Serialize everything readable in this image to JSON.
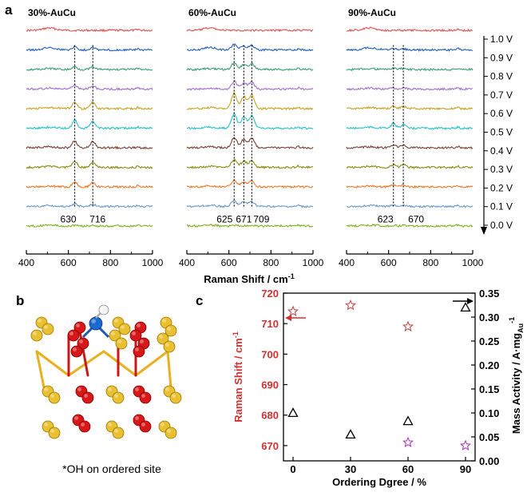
{
  "panel_letters": {
    "a": "a",
    "b": "b",
    "c": "c"
  },
  "caption_b": "*OH on ordered site",
  "chart_data": [
    {
      "type": "line",
      "panel": "a",
      "xlabel": "Raman Shift / cm",
      "xlabel_sup": "-1",
      "xlim": [
        400,
        1000
      ],
      "xticks": [
        "400",
        "600",
        "800",
        "1000"
      ],
      "voltage_labels": [
        "1.0 V",
        "0.9 V",
        "0.8 V",
        "0.7 V",
        "0.6 V",
        "0.5 V",
        "0.4 V",
        "0.3 V",
        "0.2 V",
        "0.1 V",
        "0.0 V"
      ],
      "series_colors": [
        "#e05050",
        "#2060c0",
        "#3aa070",
        "#a070d0",
        "#c8a020",
        "#28c0c8",
        "#7a4030",
        "#8a8a10",
        "#f07828",
        "#6a9ad0",
        "#80b020"
      ],
      "subplots": [
        {
          "title": "30%-AuCu",
          "peaks": [
            630,
            716
          ],
          "peak_labels": [
            "630",
            "716"
          ],
          "peak_heights": [
            0.0,
            0.25,
            0.22,
            0.28,
            0.55,
            0.65,
            0.55,
            0.45,
            0.4,
            0.2,
            0.05
          ]
        },
        {
          "title": "60%-AuCu",
          "peaks": [
            625,
            671,
            709
          ],
          "peak_labels": [
            "625",
            "671",
            "709"
          ],
          "peak_heights": [
            0.0,
            0.4,
            0.5,
            0.6,
            1.2,
            1.1,
            0.8,
            0.6,
            0.5,
            0.45,
            0.05
          ]
        },
        {
          "title": "90%-AuCu",
          "peaks": [
            623,
            670
          ],
          "peak_labels": [
            "623",
            "670"
          ],
          "peak_heights": [
            0.0,
            0.1,
            0.1,
            0.1,
            0.2,
            0.35,
            0.25,
            0.2,
            0.15,
            0.1,
            0.05
          ]
        }
      ]
    },
    {
      "type": "scatter",
      "panel": "c",
      "xlabel": "Ordering Dgree / %",
      "ylabel_left": "Raman Shift / cm",
      "ylabel_left_sup": "-1",
      "ylabel_right": "Mass Activity / A·mg",
      "ylabel_right_sub": "Au",
      "ylabel_right_sup": "-1",
      "xlim": [
        -5,
        95
      ],
      "xticks": [
        0,
        30,
        60,
        90
      ],
      "ylim_left": [
        665,
        720
      ],
      "yticks_left": [
        670,
        680,
        690,
        700,
        710,
        720
      ],
      "ylim_right": [
        0,
        0.35
      ],
      "yticks_right": [
        "0.00",
        "0.05",
        "0.10",
        "0.15",
        "0.20",
        "0.25",
        "0.30",
        "0.35"
      ],
      "series": [
        {
          "marker": "star",
          "axis": "left",
          "color": "#c0504d",
          "x": [
            0,
            30,
            60
          ],
          "y": [
            714,
            716,
            709
          ]
        },
        {
          "marker": "star",
          "axis": "left",
          "color": "#b040c0",
          "x": [
            60,
            90
          ],
          "y": [
            671,
            670
          ]
        },
        {
          "marker": "triangle",
          "axis": "right",
          "color": "#000000",
          "x": [
            0,
            30,
            60,
            90
          ],
          "y": [
            0.1,
            0.055,
            0.083,
            0.32
          ]
        }
      ],
      "left_color": "#d03030",
      "right_color": "#000000"
    }
  ]
}
